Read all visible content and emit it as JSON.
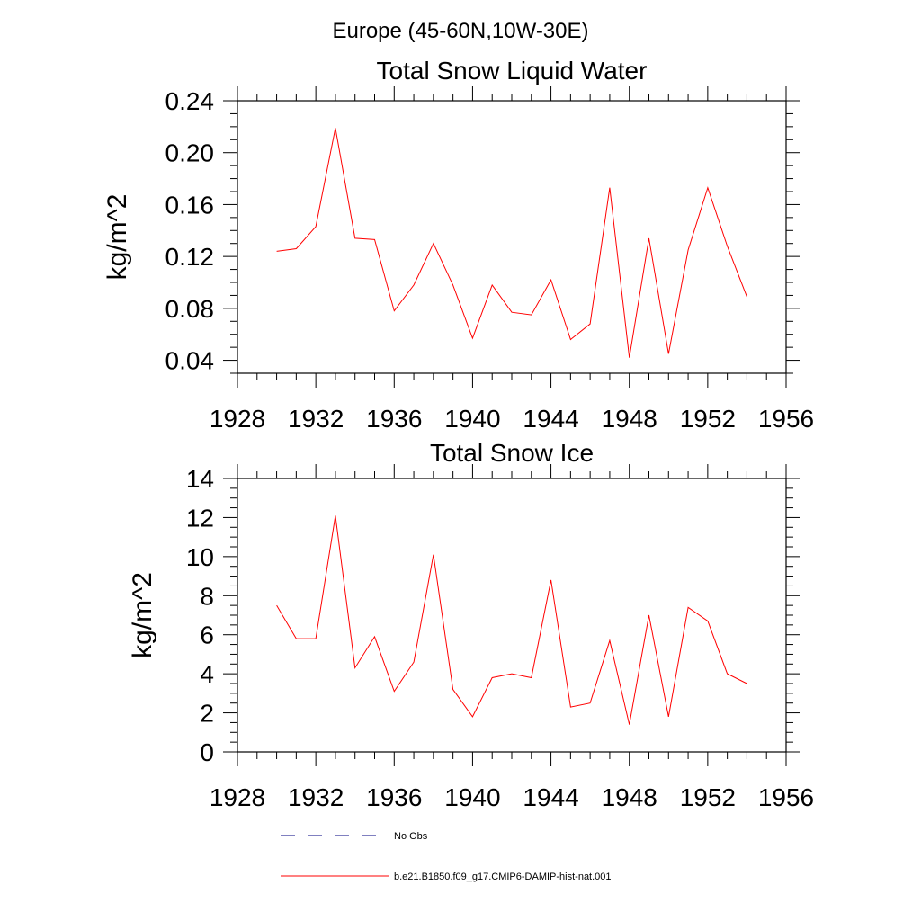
{
  "title": "Europe (45-60N,10W-30E)",
  "chart_data": [
    {
      "type": "line",
      "title": "Total Snow Liquid Water",
      "ylabel": "kg/m^2",
      "xlim": [
        1928,
        1956
      ],
      "ylim": [
        0.03,
        0.24
      ],
      "xticks": [
        1928,
        1932,
        1936,
        1940,
        1944,
        1948,
        1952,
        1956
      ],
      "xtick_labels": [
        "1928",
        "1932",
        "1936",
        "1940",
        "1944",
        "1948",
        "1952",
        "1956"
      ],
      "yticks": [
        0.04,
        0.08,
        0.12,
        0.16,
        0.2,
        0.24
      ],
      "ytick_labels": [
        "0.04",
        "0.08",
        "0.12",
        "0.16",
        "0.20",
        "0.24"
      ],
      "x": [
        1930,
        1931,
        1932,
        1933,
        1934,
        1935,
        1936,
        1937,
        1938,
        1939,
        1940,
        1941,
        1942,
        1943,
        1944,
        1945,
        1946,
        1947,
        1948,
        1949,
        1950,
        1951,
        1952,
        1953,
        1954
      ],
      "series": [
        {
          "name": "b.e21.B1850.f09_g17.CMIP6-DAMIP-hist-nat.001",
          "color": "#ff0000",
          "values": [
            0.124,
            0.126,
            0.143,
            0.219,
            0.134,
            0.133,
            0.078,
            0.098,
            0.13,
            0.098,
            0.057,
            0.098,
            0.077,
            0.075,
            0.102,
            0.056,
            0.068,
            0.173,
            0.042,
            0.134,
            0.045,
            0.125,
            0.173,
            0.128,
            0.089
          ]
        }
      ]
    },
    {
      "type": "line",
      "title": "Total Snow Ice",
      "ylabel": "kg/m^2",
      "xlim": [
        1928,
        1956
      ],
      "ylim": [
        0,
        14
      ],
      "xticks": [
        1928,
        1932,
        1936,
        1940,
        1944,
        1948,
        1952,
        1956
      ],
      "xtick_labels": [
        "1928",
        "1932",
        "1936",
        "1940",
        "1944",
        "1948",
        "1952",
        "1956"
      ],
      "yticks": [
        0,
        2,
        4,
        6,
        8,
        10,
        12,
        14
      ],
      "ytick_labels": [
        "0",
        "2",
        "4",
        "6",
        "8",
        "10",
        "12",
        "14"
      ],
      "x": [
        1930,
        1931,
        1932,
        1933,
        1934,
        1935,
        1936,
        1937,
        1938,
        1939,
        1940,
        1941,
        1942,
        1943,
        1944,
        1945,
        1946,
        1947,
        1948,
        1949,
        1950,
        1951,
        1952,
        1953,
        1954
      ],
      "series": [
        {
          "name": "b.e21.B1850.f09_g17.CMIP6-DAMIP-hist-nat.001",
          "color": "#ff0000",
          "values": [
            7.5,
            5.8,
            5.8,
            12.1,
            4.3,
            5.9,
            3.1,
            4.6,
            10.1,
            3.2,
            1.8,
            3.8,
            4.0,
            3.8,
            8.8,
            2.3,
            2.5,
            5.7,
            1.4,
            7.0,
            1.8,
            7.4,
            6.7,
            4.0,
            3.5
          ]
        }
      ]
    }
  ],
  "legend": {
    "items": [
      {
        "label": "No Obs",
        "style": "dashed",
        "color": "#000080"
      },
      {
        "label": "b.e21.B1850.f09_g17.CMIP6-DAMIP-hist-nat.001",
        "style": "solid",
        "color": "#ff0000"
      }
    ]
  }
}
